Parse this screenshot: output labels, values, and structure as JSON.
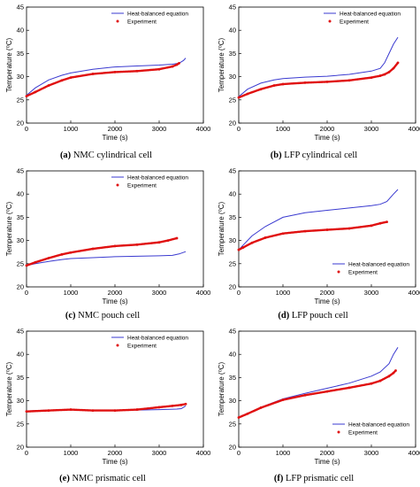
{
  "chart_data": [
    {
      "type": "line",
      "caption_letter": "(a)",
      "caption_text": " NMC cylindrical cell",
      "xlabel": "Time (s)",
      "ylabel": "Temperature (⁰C)",
      "xlim": [
        0,
        4000
      ],
      "ylim": [
        20,
        45
      ],
      "xticks": [
        "0",
        "1000",
        "2000",
        "3000",
        "4000"
      ],
      "yticks": [
        "20",
        "25",
        "30",
        "35",
        "40",
        "45"
      ],
      "legend_position": "top",
      "grid": false,
      "series": [
        {
          "name": "Heat-balanced equation",
          "style": "line",
          "color": "#3a3ad0",
          "x": [
            0,
            200,
            500,
            800,
            1000,
            1500,
            2000,
            2500,
            3000,
            3300,
            3450,
            3550,
            3600
          ],
          "y": [
            26,
            27.6,
            29.3,
            30.3,
            30.8,
            31.6,
            32.1,
            32.3,
            32.5,
            32.7,
            32.9,
            33.5,
            34
          ]
        },
        {
          "name": "Experiment",
          "style": "dots",
          "color": "#e01010",
          "x": [
            0,
            200,
            500,
            800,
            1000,
            1500,
            2000,
            2500,
            3000,
            3300,
            3400,
            3450
          ],
          "y": [
            25.8,
            26.7,
            28.1,
            29.2,
            29.8,
            30.6,
            31,
            31.2,
            31.6,
            32.2,
            32.6,
            32.9
          ]
        }
      ]
    },
    {
      "type": "line",
      "caption_letter": "(b)",
      "caption_text": " LFP cylindrical cell",
      "xlabel": "Time (s)",
      "ylabel": "Temperature (⁰C)",
      "xlim": [
        0,
        4000
      ],
      "ylim": [
        20,
        45
      ],
      "xticks": [
        "0",
        "1000",
        "2000",
        "3000",
        "4000"
      ],
      "yticks": [
        "20",
        "25",
        "30",
        "35",
        "40",
        "45"
      ],
      "legend_position": "top",
      "grid": false,
      "series": [
        {
          "name": "Heat-balanced equation",
          "style": "line",
          "color": "#3a3ad0",
          "x": [
            0,
            200,
            500,
            800,
            1000,
            1500,
            2000,
            2500,
            3000,
            3200,
            3300,
            3400,
            3500,
            3600
          ],
          "y": [
            25.7,
            27.3,
            28.6,
            29.3,
            29.6,
            29.9,
            30.1,
            30.5,
            31.2,
            31.8,
            33,
            35,
            37,
            38.5
          ]
        },
        {
          "name": "Experiment",
          "style": "dots",
          "color": "#e01010",
          "x": [
            0,
            200,
            500,
            800,
            1000,
            1500,
            2000,
            2500,
            3000,
            3200,
            3300,
            3400,
            3500,
            3600
          ],
          "y": [
            25.5,
            26.3,
            27.3,
            28.1,
            28.4,
            28.7,
            28.9,
            29.2,
            29.8,
            30.2,
            30.5,
            31,
            31.8,
            33
          ]
        }
      ]
    },
    {
      "type": "line",
      "caption_letter": "(c)",
      "caption_text": " NMC pouch cell",
      "xlabel": "Time (s)",
      "ylabel": "Temperature (⁰C)",
      "xlim": [
        0,
        4000
      ],
      "ylim": [
        20,
        45
      ],
      "xticks": [
        "0",
        "1000",
        "2000",
        "3000",
        "4000"
      ],
      "yticks": [
        "20",
        "25",
        "30",
        "35",
        "40",
        "45"
      ],
      "legend_position": "top",
      "grid": false,
      "series": [
        {
          "name": "Heat-balanced equation",
          "style": "line",
          "color": "#3a3ad0",
          "x": [
            0,
            200,
            500,
            800,
            1000,
            1500,
            2000,
            2500,
            3000,
            3300,
            3450,
            3600
          ],
          "y": [
            24.6,
            25,
            25.5,
            25.9,
            26.1,
            26.3,
            26.5,
            26.6,
            26.7,
            26.8,
            27.1,
            27.6
          ]
        },
        {
          "name": "Experiment",
          "style": "dots",
          "color": "#e01010",
          "x": [
            0,
            200,
            500,
            800,
            1000,
            1500,
            2000,
            2500,
            3000,
            3200,
            3400
          ],
          "y": [
            24.6,
            25.3,
            26.2,
            27,
            27.4,
            28.2,
            28.8,
            29.1,
            29.6,
            30,
            30.5
          ]
        }
      ]
    },
    {
      "type": "line",
      "caption_letter": "(d)",
      "caption_text": " LFP pouch cell",
      "xlabel": "Time (s)",
      "ylabel": "Temperature (⁰C)",
      "xlim": [
        0,
        4000
      ],
      "ylim": [
        20,
        45
      ],
      "xticks": [
        "0",
        "1000",
        "2000",
        "3000",
        "4000"
      ],
      "yticks": [
        "20",
        "25",
        "30",
        "35",
        "40",
        "45"
      ],
      "legend_position": "bottom-right",
      "grid": false,
      "series": [
        {
          "name": "Heat-balanced equation",
          "style": "line",
          "color": "#3a3ad0",
          "x": [
            0,
            100,
            300,
            600,
            1000,
            1500,
            2000,
            2500,
            3000,
            3200,
            3350,
            3500,
            3600
          ],
          "y": [
            28,
            29,
            31,
            33,
            35,
            36,
            36.5,
            37,
            37.5,
            37.8,
            38.4,
            40,
            41
          ]
        },
        {
          "name": "Experiment",
          "style": "dots",
          "color": "#e01010",
          "x": [
            0,
            100,
            300,
            600,
            1000,
            1500,
            2000,
            2500,
            3000,
            3200,
            3350
          ],
          "y": [
            28,
            28.5,
            29.5,
            30.6,
            31.5,
            32,
            32.3,
            32.6,
            33.2,
            33.7,
            34
          ]
        }
      ]
    },
    {
      "type": "line",
      "caption_letter": "(e)",
      "caption_text": " NMC prismatic cell",
      "xlabel": "Time (s)",
      "ylabel": "Temperature (⁰C)",
      "xlim": [
        0,
        4000
      ],
      "ylim": [
        20,
        45
      ],
      "xticks": [
        "0",
        "1000",
        "2000",
        "3000",
        "4000"
      ],
      "yticks": [
        "20",
        "25",
        "30",
        "35",
        "40",
        "45"
      ],
      "legend_position": "top",
      "grid": false,
      "series": [
        {
          "name": "Heat-balanced equation",
          "style": "line",
          "color": "#3a3ad0",
          "x": [
            0,
            500,
            1000,
            1500,
            2000,
            2500,
            3000,
            3400,
            3500,
            3600
          ],
          "y": [
            27.8,
            28,
            28.1,
            28,
            28,
            28,
            28.1,
            28.2,
            28.3,
            28.9
          ]
        },
        {
          "name": "Experiment",
          "style": "dots",
          "color": "#e01010",
          "x": [
            0,
            500,
            1000,
            1500,
            2000,
            2500,
            3000,
            3300,
            3500,
            3600
          ],
          "y": [
            27.7,
            27.9,
            28.1,
            27.9,
            27.9,
            28.1,
            28.6,
            28.9,
            29.1,
            29.3
          ]
        }
      ]
    },
    {
      "type": "line",
      "caption_letter": "(f)",
      "caption_text": " LFP prismatic cell",
      "xlabel": "Time (s)",
      "ylabel": "Temperature (⁰C)",
      "xlim": [
        0,
        4000
      ],
      "ylim": [
        20,
        45
      ],
      "xticks": [
        "0",
        "1000",
        "2000",
        "3000",
        "4000"
      ],
      "yticks": [
        "20",
        "25",
        "30",
        "35",
        "40",
        "45"
      ],
      "legend_position": "bottom-right",
      "grid": false,
      "series": [
        {
          "name": "Heat-balanced equation",
          "style": "line",
          "color": "#3a3ad0",
          "x": [
            0,
            200,
            500,
            1000,
            1500,
            2000,
            2500,
            3000,
            3200,
            3400,
            3500,
            3600
          ],
          "y": [
            26.5,
            27.3,
            28.6,
            30.4,
            31.6,
            32.7,
            33.8,
            35.3,
            36.2,
            38,
            40,
            41.5
          ]
        },
        {
          "name": "Experiment",
          "style": "dots",
          "color": "#e01010",
          "x": [
            0,
            200,
            500,
            1000,
            1500,
            2000,
            2500,
            3000,
            3200,
            3400,
            3500,
            3550
          ],
          "y": [
            26.4,
            27.2,
            28.5,
            30.2,
            31.2,
            32,
            32.8,
            33.7,
            34.3,
            35.3,
            36,
            36.5
          ]
        }
      ]
    }
  ]
}
